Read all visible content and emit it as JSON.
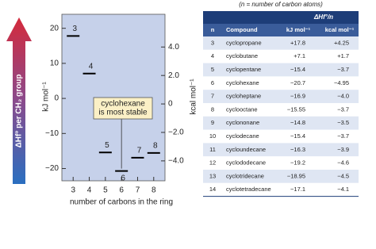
{
  "chart_data": {
    "type": "scatter",
    "marker": "dash",
    "color": "#000000",
    "plot_background": "#c6d1ea",
    "arrow_label": "ΔHf° per CH₂ group",
    "x": [
      3,
      4,
      5,
      6,
      7,
      8
    ],
    "values": [
      17.8,
      7.1,
      -15.4,
      -20.7,
      -16.9,
      -15.55
    ],
    "point_labels": [
      "3",
      "4",
      "5",
      "6",
      "7",
      "8"
    ],
    "xlim": [
      2.3,
      8.7
    ],
    "xticks": [
      3,
      4,
      5,
      6,
      7,
      8
    ],
    "ylim": [
      -23.5,
      24
    ],
    "yticks": [
      {
        "value": -20,
        "label": "−20"
      },
      {
        "value": -10,
        "label": "−10"
      },
      0,
      10,
      20
    ],
    "y2lim": [
      -5.4,
      6.3
    ],
    "y2ticks": [
      {
        "value": -4,
        "label": "−4.0"
      },
      {
        "value": -2,
        "label": "−2.0"
      },
      0,
      {
        "value": 2,
        "label": "2.0"
      },
      {
        "value": 4,
        "label": "4.0"
      }
    ],
    "xlabel": "number of carbons in the ring",
    "ylabel": "kJ mol⁻¹",
    "y2label": "kcal mol⁻¹",
    "annotation": [
      "cyclohexane",
      "is most stable"
    ]
  },
  "table": {
    "caption": "(n = number of carbon atoms)",
    "group_header": "ΔHf°/n",
    "columns": [
      "n",
      "Compound",
      "kJ mol⁻¹",
      "kcal mol⁻¹"
    ],
    "rows": [
      [
        "3",
        "cyclopropane",
        "+17.8",
        "+4.25"
      ],
      [
        "4",
        "cyclobutane",
        "+7.1",
        "+1.7"
      ],
      [
        "5",
        "cyclopentane",
        "−15.4",
        "−3.7"
      ],
      [
        "6",
        "cyclohexane",
        "−20.7",
        "−4.95"
      ],
      [
        "7",
        "cycloheptane",
        "−16.9",
        "−4.0"
      ],
      [
        "8",
        "cyclooctane",
        "−15.55",
        "−3.7"
      ],
      [
        "9",
        "cyclononane",
        "−14.8",
        "−3.5"
      ],
      [
        "10",
        "cyclodecane",
        "−15.4",
        "−3.7"
      ],
      [
        "11",
        "cycloundecane",
        "−16.3",
        "−3.9"
      ],
      [
        "12",
        "cyclododecane",
        "−19.2",
        "−4.6"
      ],
      [
        "13",
        "cyclotridecane",
        "−18.95",
        "−4.5"
      ],
      [
        "14",
        "cyclotetradecane",
        "−17.1",
        "−4.1"
      ]
    ]
  }
}
